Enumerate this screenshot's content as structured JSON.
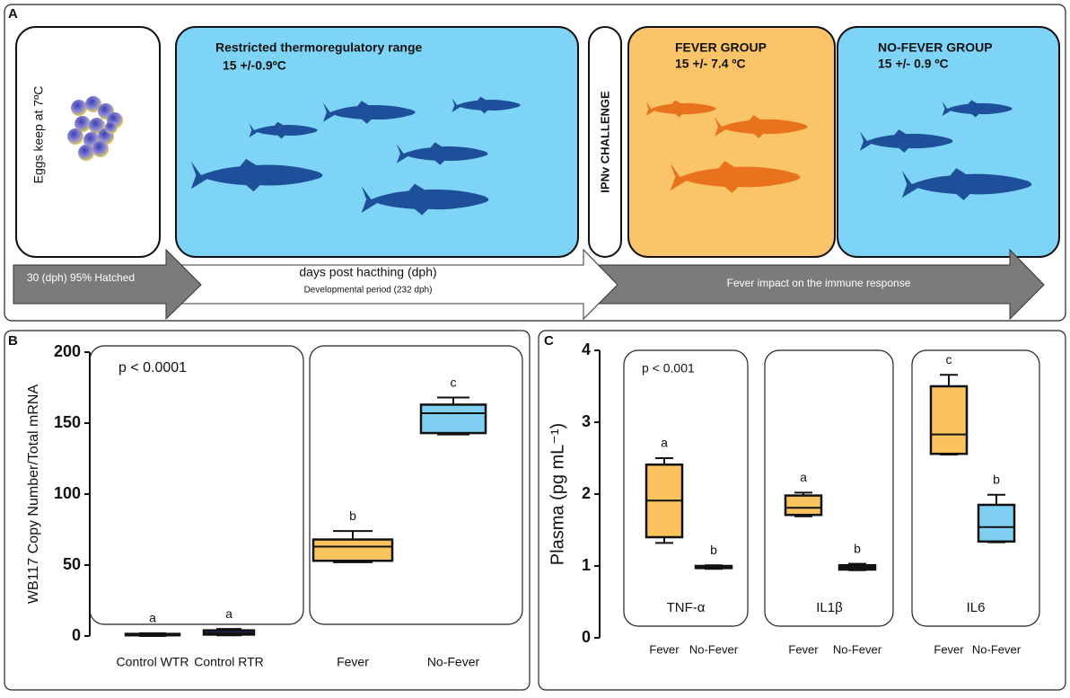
{
  "panel_a": {
    "label": "A",
    "eggs": "Eggs  keep at 7ºC",
    "rtr_title": "Restricted thermoregulatory range",
    "rtr_temp": "15 +/-0.9ºC",
    "challenge": "IPNv CHALLENGE",
    "fever_title": "FEVER GROUP",
    "fever_temp": "15 +/- 7.4 ºC",
    "nofever_title": "NO-FEVER GROUP",
    "nofever_temp": "15 +/- 0.9 ºC",
    "arrow_1": "30 (dph) 95% Hatched",
    "arrow_2": "days post hacthing (dph)",
    "arrow_2_sub": "Developmental period (232 dph)",
    "arrow_3": "Fever impact on the immune response"
  },
  "chart_data": [
    {
      "type": "box",
      "panel": "B",
      "ylabel": "WB117 Copy Number/Total mRNA",
      "annotation": "p < 0.0001",
      "categories": [
        "Control WTR",
        "Control RTR",
        "Fever",
        "No-Fever"
      ],
      "boxes": [
        {
          "min": 0,
          "q1": 0.5,
          "median": 1,
          "q3": 1.5,
          "max": 2
        },
        {
          "min": 0.5,
          "q1": 1,
          "median": 2,
          "q3": 4,
          "max": 5
        },
        {
          "min": 52,
          "q1": 53,
          "median": 63,
          "q3": 68,
          "max": 74
        },
        {
          "min": 142,
          "q1": 143,
          "median": 157,
          "q3": 163,
          "max": 168
        }
      ],
      "colors": [
        "#1f2a6e",
        "#1f2a6e",
        "#fbc35e",
        "#7fd0f2"
      ],
      "letters": [
        "a",
        "a",
        "b",
        "c"
      ],
      "ylim": [
        0,
        200
      ],
      "yticks": [
        0,
        50,
        100,
        150,
        200
      ]
    },
    {
      "type": "box",
      "panel": "C",
      "ylabel": "Plasma (pg mL⁻¹)",
      "annotation": "p < 0.001",
      "categories": [
        "Fever",
        "No-Fever",
        "Fever",
        "No-Fever",
        "Fever",
        "No-Fever"
      ],
      "groups": [
        "TNF-α",
        "IL1β",
        "IL6"
      ],
      "boxes": [
        {
          "min": 1.32,
          "q1": 1.4,
          "median": 1.91,
          "q3": 2.41,
          "max": 2.5
        },
        {
          "min": 0.96,
          "q1": 0.97,
          "median": 0.98,
          "q3": 1.0,
          "max": 1.01
        },
        {
          "min": 1.69,
          "q1": 1.71,
          "median": 1.81,
          "q3": 1.98,
          "max": 2.02
        },
        {
          "min": 0.94,
          "q1": 0.95,
          "median": 0.98,
          "q3": 1.01,
          "max": 1.03
        },
        {
          "min": 2.55,
          "q1": 2.56,
          "median": 2.83,
          "q3": 3.5,
          "max": 3.66
        },
        {
          "min": 1.33,
          "q1": 1.34,
          "median": 1.54,
          "q3": 1.85,
          "max": 1.99
        }
      ],
      "colors": [
        "#fbc35e",
        "#1f2a6e",
        "#fbc35e",
        "#1f2a6e",
        "#fbc35e",
        "#7fd0f2"
      ],
      "letters": [
        "a",
        "b",
        "a",
        "b",
        "c",
        "b"
      ],
      "ylim": [
        0,
        4
      ],
      "yticks": [
        0,
        1,
        2,
        3,
        4
      ]
    }
  ]
}
